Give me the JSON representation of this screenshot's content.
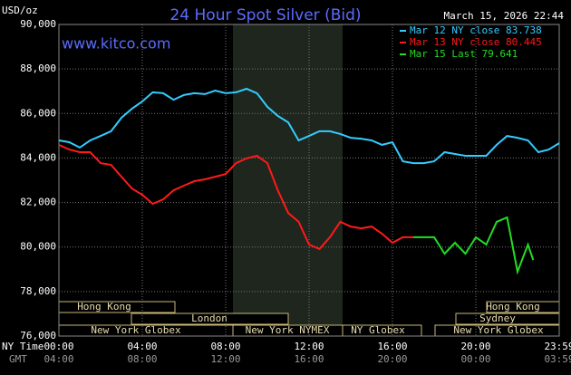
{
  "chart_data": {
    "type": "line",
    "title": "24 Hour Spot Silver (Bid)",
    "y_unit": "USD/oz",
    "timestamp": "March 15, 2026 22:44",
    "watermark": "www.kitco.com",
    "x_axis_label": "NY Time",
    "x2_axis_label": "GMT",
    "xlim": [
      0,
      24
    ],
    "xticks": [
      {
        "value": 0,
        "label": "00:00"
      },
      {
        "value": 4,
        "label": "04:00"
      },
      {
        "value": 8,
        "label": "08:00"
      },
      {
        "value": 12,
        "label": "12:00"
      },
      {
        "value": 16,
        "label": "16:00"
      },
      {
        "value": 20,
        "label": "20:00"
      },
      {
        "value": 24,
        "label": "23:59"
      }
    ],
    "gmt_ticks": [
      "04:00",
      "08:00",
      "12:00",
      "16:00",
      "20:00",
      "00:00",
      "03:59"
    ],
    "ylim": [
      76000,
      90000
    ],
    "yticks": [
      {
        "value": 76000,
        "label": "76,000"
      },
      {
        "value": 78000,
        "label": "78,000"
      },
      {
        "value": 80000,
        "label": "80,000"
      },
      {
        "value": 82000,
        "label": "82,000"
      },
      {
        "value": 84000,
        "label": "84,000"
      },
      {
        "value": 86000,
        "label": "86,000"
      },
      {
        "value": 88000,
        "label": "88,000"
      },
      {
        "value": 90000,
        "label": "90,000"
      }
    ],
    "grid": true,
    "sessions": [
      "Hong Kong",
      "London",
      "New York Globex",
      "New York NYMEX",
      "NY Globex",
      "Hong Kong",
      "Sydney",
      "New York Globex"
    ],
    "series": [
      {
        "name": "Mar 12 NY close 83.738",
        "color": "#33ccff",
        "x": [
          0,
          0.5,
          1,
          1.5,
          2,
          2.5,
          3,
          3.5,
          4,
          4.5,
          5,
          5.5,
          6,
          6.5,
          7,
          7.5,
          8,
          8.5,
          9,
          9.5,
          10,
          10.5,
          11,
          11.5,
          12,
          12.5,
          13,
          13.5,
          14,
          14.5,
          15,
          15.5,
          16,
          16.5,
          17,
          17.5,
          18,
          18.5,
          19,
          19.5,
          20,
          20.5,
          21,
          21.5,
          22,
          22.5,
          23,
          23.5,
          24
        ],
        "values": [
          84790,
          84710,
          84470,
          84790,
          84990,
          85200,
          85810,
          86210,
          86540,
          86950,
          86910,
          86620,
          86830,
          86910,
          86870,
          87030,
          86910,
          86950,
          87110,
          86910,
          86300,
          85890,
          85600,
          84790,
          84990,
          85200,
          85200,
          85080,
          84910,
          84870,
          84790,
          84590,
          84710,
          83850,
          83770,
          83770,
          83850,
          84260,
          84180,
          84100,
          84100,
          84100,
          84590,
          84990,
          84910,
          84790,
          84260,
          84380,
          84670
        ]
      },
      {
        "name": "Mar 13 NY close 80.445",
        "color": "#ff1a1a",
        "x": [
          0,
          0.5,
          1,
          1.5,
          2,
          2.5,
          3,
          3.5,
          4,
          4.5,
          5,
          5.5,
          6,
          6.5,
          7,
          7.5,
          8,
          8.5,
          9,
          9.5,
          10,
          10.5,
          11,
          11.5,
          12,
          12.5,
          13,
          13.5,
          14,
          14.5,
          15,
          15.5,
          16,
          16.5,
          17
        ],
        "values": [
          84590,
          84380,
          84260,
          84260,
          83770,
          83690,
          83160,
          82630,
          82350,
          81940,
          82140,
          82550,
          82760,
          82960,
          83040,
          83160,
          83280,
          83770,
          83980,
          84100,
          83770,
          82550,
          81530,
          81130,
          80110,
          79910,
          80440,
          81130,
          80920,
          80840,
          80920,
          80600,
          80190,
          80440,
          80440
        ]
      },
      {
        "name": "Mar 15 Last 79.641",
        "color": "#22dd22",
        "x": [
          17,
          17.5,
          18,
          18.5,
          19,
          19.5,
          20,
          20.5,
          21,
          21.5,
          22,
          22.5,
          22.75
        ],
        "values": [
          80440,
          80440,
          80440,
          79700,
          80190,
          79700,
          80440,
          80110,
          81130,
          81330,
          78890,
          80110,
          79420
        ]
      }
    ]
  }
}
